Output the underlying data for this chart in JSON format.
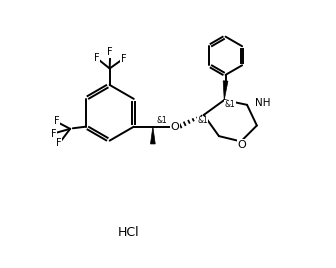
{
  "background_color": "#ffffff",
  "line_color": "#000000",
  "line_width": 1.4,
  "figsize": [
    3.36,
    2.68
  ],
  "dpi": 100,
  "xlim": [
    0,
    10
  ],
  "ylim": [
    0,
    10
  ],
  "hcl_x": 3.5,
  "hcl_y": 1.3,
  "hcl_fontsize": 9
}
